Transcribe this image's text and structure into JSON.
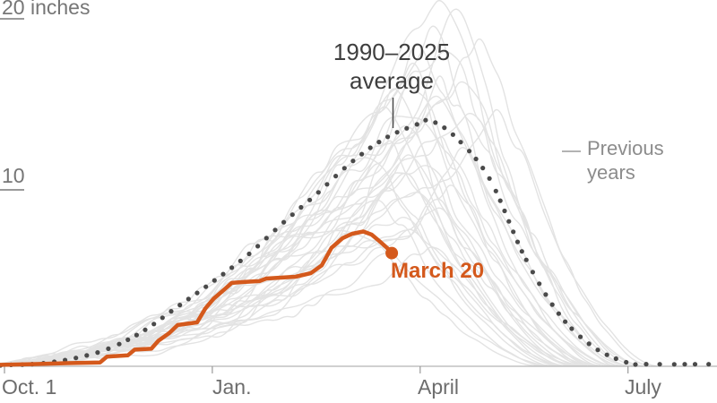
{
  "chart_data": {
    "type": "line",
    "title": "",
    "x_unit": "months_after_oct_1",
    "y_unit": "inches",
    "ylim": [
      0,
      21
    ],
    "xlim_months": [
      0,
      10.3
    ],
    "grid": false,
    "y_axis": {
      "ticks": [
        {
          "label": "20 inches",
          "value": 20
        },
        {
          "label": "10",
          "value": 10
        }
      ]
    },
    "x_axis": {
      "ticks": [
        {
          "label": "Oct. 1",
          "month": 0
        },
        {
          "label": "Jan.",
          "month": 3
        },
        {
          "label": "April",
          "month": 6
        },
        {
          "label": "July",
          "month": 9
        }
      ]
    },
    "annotations": {
      "average": {
        "line1": "1990–2025",
        "line2": "average"
      },
      "previous_years": {
        "line1": "Previous",
        "line2": "years"
      },
      "current": {
        "label": "March 20",
        "end_value_inches": 6.45,
        "end_month": 5.59
      }
    },
    "colors": {
      "current": "#d4591c",
      "previous_years": "#e3e3e3",
      "average_dots": "#4a4a4a",
      "axis": "#b5b5b5",
      "tick": "#9a9a9a",
      "axis_label": "#6d6d6d",
      "y_label": "#767676",
      "annotation": "#3e3e3e",
      "previous_label": "#8c8c8c"
    },
    "series": [
      {
        "name": "1990–2025 average",
        "style": "dotted",
        "points": [
          [
            -0.06,
            0.05
          ],
          [
            0,
            0.07
          ],
          [
            0.5,
            0.15
          ],
          [
            1,
            0.45
          ],
          [
            1.5,
            1.0
          ],
          [
            2,
            2.0
          ],
          [
            2.5,
            3.4
          ],
          [
            3,
            4.8
          ],
          [
            3.5,
            6.3
          ],
          [
            4,
            8.1
          ],
          [
            4.5,
            9.8
          ],
          [
            5,
            11.6
          ],
          [
            5.5,
            13.0
          ],
          [
            6,
            13.85
          ],
          [
            6.15,
            14.0
          ],
          [
            6.5,
            13.1
          ],
          [
            7,
            10.7
          ],
          [
            7.5,
            6.3
          ],
          [
            8,
            3.0
          ],
          [
            8.5,
            1.1
          ],
          [
            9,
            0.2
          ],
          [
            9.3,
            0.12
          ],
          [
            10.3,
            0.12
          ]
        ]
      },
      {
        "name": "Current season through March 20",
        "style": "solid",
        "points": [
          [
            -0.06,
            0.08
          ],
          [
            0.4,
            0.12
          ],
          [
            0.9,
            0.18
          ],
          [
            1.38,
            0.22
          ],
          [
            1.48,
            0.55
          ],
          [
            1.78,
            0.62
          ],
          [
            1.88,
            0.95
          ],
          [
            2.12,
            1.0
          ],
          [
            2.22,
            1.45
          ],
          [
            2.38,
            1.9
          ],
          [
            2.5,
            2.35
          ],
          [
            2.78,
            2.5
          ],
          [
            2.9,
            3.3
          ],
          [
            3.02,
            3.85
          ],
          [
            3.18,
            4.4
          ],
          [
            3.28,
            4.75
          ],
          [
            3.45,
            4.8
          ],
          [
            3.68,
            4.85
          ],
          [
            3.78,
            5.0
          ],
          [
            4.2,
            5.1
          ],
          [
            4.42,
            5.3
          ],
          [
            4.58,
            5.75
          ],
          [
            4.72,
            6.75
          ],
          [
            4.88,
            7.3
          ],
          [
            5.02,
            7.55
          ],
          [
            5.18,
            7.68
          ],
          [
            5.3,
            7.5
          ],
          [
            5.42,
            7.1
          ],
          [
            5.52,
            6.75
          ],
          [
            5.59,
            6.45
          ]
        ]
      },
      {
        "name": "Previous years",
        "style": "light",
        "generated": true,
        "years": [
          {
            "peak": 21.0,
            "peak_month": 6.4,
            "end_month": 9.0,
            "seed": 11
          },
          {
            "peak": 20.3,
            "peak_month": 6.6,
            "end_month": 8.8,
            "seed": 22
          },
          {
            "peak": 19.6,
            "peak_month": 6.2,
            "end_month": 9.2,
            "seed": 33
          },
          {
            "peak": 19.0,
            "peak_month": 6.9,
            "end_month": 9.3,
            "seed": 44
          },
          {
            "peak": 18.4,
            "peak_month": 6.1,
            "end_month": 8.6,
            "seed": 55
          },
          {
            "peak": 18.0,
            "peak_month": 6.5,
            "end_month": 9.0,
            "seed": 66
          },
          {
            "peak": 17.5,
            "peak_month": 5.9,
            "end_month": 8.4,
            "seed": 77
          },
          {
            "peak": 17.0,
            "peak_month": 6.3,
            "end_month": 8.9,
            "seed": 88
          },
          {
            "peak": 16.6,
            "peak_month": 6.7,
            "end_month": 9.1,
            "seed": 99
          },
          {
            "peak": 16.2,
            "peak_month": 5.7,
            "end_month": 8.2,
            "seed": 101
          },
          {
            "peak": 15.8,
            "peak_month": 6.0,
            "end_month": 8.7,
            "seed": 112
          },
          {
            "peak": 15.4,
            "peak_month": 6.4,
            "end_month": 8.9,
            "seed": 123
          },
          {
            "peak": 15.0,
            "peak_month": 5.5,
            "end_month": 8.0,
            "seed": 134
          },
          {
            "peak": 14.6,
            "peak_month": 6.8,
            "end_month": 9.2,
            "seed": 145
          },
          {
            "peak": 14.2,
            "peak_month": 6.1,
            "end_month": 8.5,
            "seed": 156
          },
          {
            "peak": 13.8,
            "peak_month": 5.8,
            "end_month": 8.3,
            "seed": 167
          },
          {
            "peak": 13.4,
            "peak_month": 6.3,
            "end_month": 8.8,
            "seed": 178
          },
          {
            "peak": 13.0,
            "peak_month": 5.6,
            "end_month": 8.1,
            "seed": 189
          },
          {
            "peak": 12.6,
            "peak_month": 6.6,
            "end_month": 9.0,
            "seed": 190
          },
          {
            "peak": 12.2,
            "peak_month": 6.0,
            "end_month": 8.4,
            "seed": 201
          },
          {
            "peak": 11.8,
            "peak_month": 5.4,
            "end_month": 7.9,
            "seed": 212
          },
          {
            "peak": 11.4,
            "peak_month": 6.2,
            "end_month": 8.6,
            "seed": 223
          },
          {
            "peak": 11.0,
            "peak_month": 5.9,
            "end_month": 8.2,
            "seed": 234
          },
          {
            "peak": 10.6,
            "peak_month": 6.5,
            "end_month": 8.8,
            "seed": 245
          },
          {
            "peak": 10.2,
            "peak_month": 5.7,
            "end_month": 8.0,
            "seed": 256
          },
          {
            "peak": 9.8,
            "peak_month": 6.1,
            "end_month": 8.5,
            "seed": 267
          },
          {
            "peak": 9.4,
            "peak_month": 5.5,
            "end_month": 7.8,
            "seed": 278
          },
          {
            "peak": 9.0,
            "peak_month": 6.3,
            "end_month": 8.6,
            "seed": 289
          },
          {
            "peak": 8.5,
            "peak_month": 5.8,
            "end_month": 8.1,
            "seed": 290
          },
          {
            "peak": 8.0,
            "peak_month": 6.0,
            "end_month": 8.3,
            "seed": 301
          },
          {
            "peak": 7.5,
            "peak_month": 5.3,
            "end_month": 7.7,
            "seed": 312
          },
          {
            "peak": 7.0,
            "peak_month": 6.2,
            "end_month": 8.4,
            "seed": 323
          },
          {
            "peak": 6.5,
            "peak_month": 5.6,
            "end_month": 7.9,
            "seed": 334
          },
          {
            "peak": 14.9,
            "peak_month": 7.2,
            "end_month": 9.4,
            "seed": 345
          }
        ]
      }
    ]
  }
}
